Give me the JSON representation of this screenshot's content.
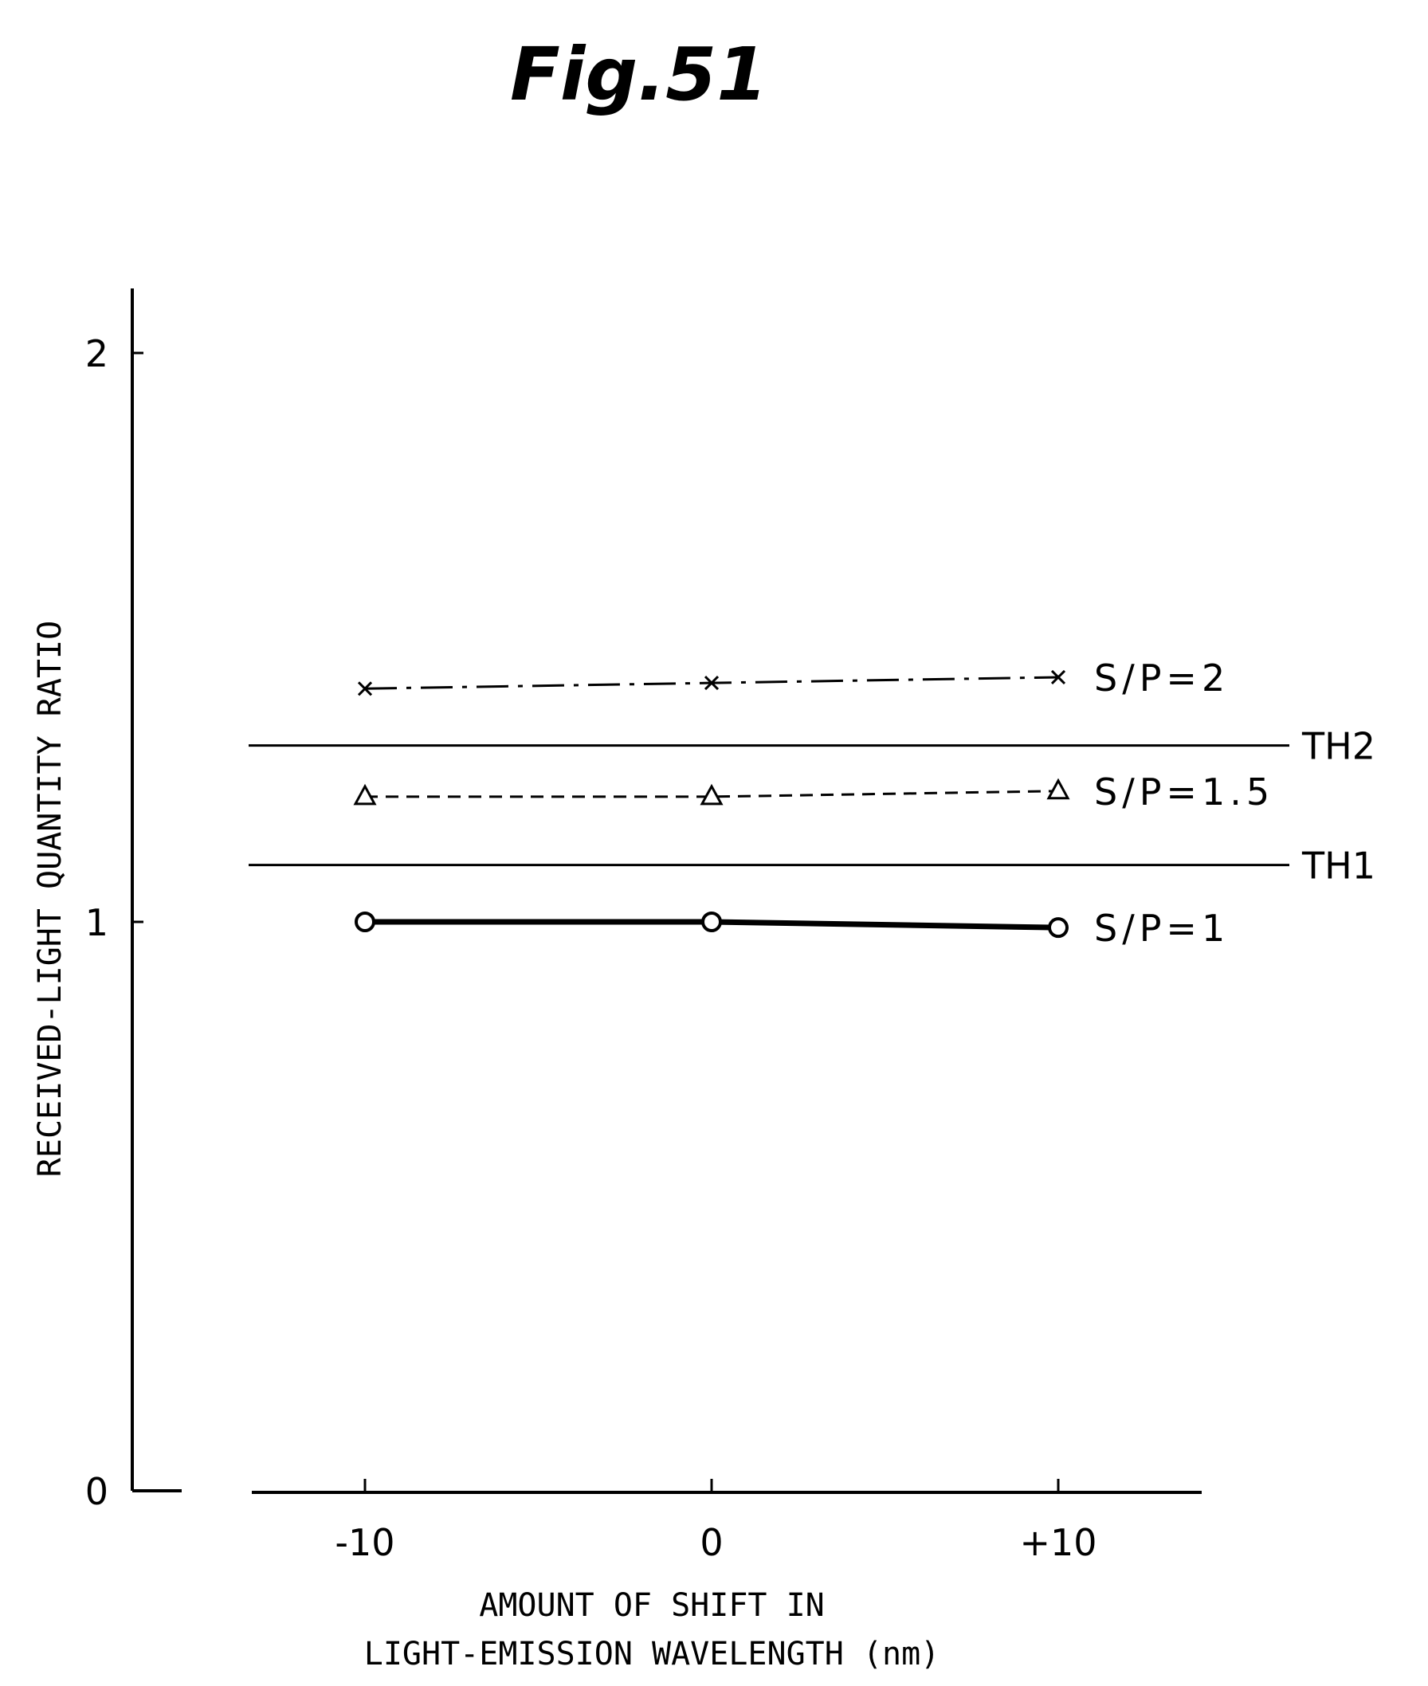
{
  "figure_label": "Fig.51",
  "chart_data": {
    "type": "line",
    "title": "",
    "xlabel_lines": [
      "AMOUNT OF SHIFT IN",
      "LIGHT-EMISSION WAVELENGTH (nm)"
    ],
    "ylabel": "RECEIVED-LIGHT QUANTITY RATIO",
    "x": [
      -10,
      0,
      10
    ],
    "x_tick_labels": [
      "-10",
      "0",
      "+10"
    ],
    "y_ticks": [
      0,
      1,
      2
    ],
    "y_tick_labels": [
      "0",
      "1",
      "2"
    ],
    "ylim": [
      0,
      2
    ],
    "series": [
      {
        "name": "S/P=2",
        "values": [
          1.41,
          1.42,
          1.43
        ],
        "marker": "x",
        "line": "dash-dot",
        "color": "#000000"
      },
      {
        "name": "S/P=1.5",
        "values": [
          1.22,
          1.22,
          1.23
        ],
        "marker": "triangle",
        "line": "dashed",
        "color": "#000000"
      },
      {
        "name": "S/P=1",
        "values": [
          1.0,
          1.0,
          0.99
        ],
        "marker": "circle",
        "line": "solid-thick",
        "color": "#000000"
      }
    ],
    "thresholds": [
      {
        "name": "TH2",
        "value": 1.31
      },
      {
        "name": "TH1",
        "value": 1.1
      }
    ],
    "grid": false,
    "legend": "inline-right"
  }
}
